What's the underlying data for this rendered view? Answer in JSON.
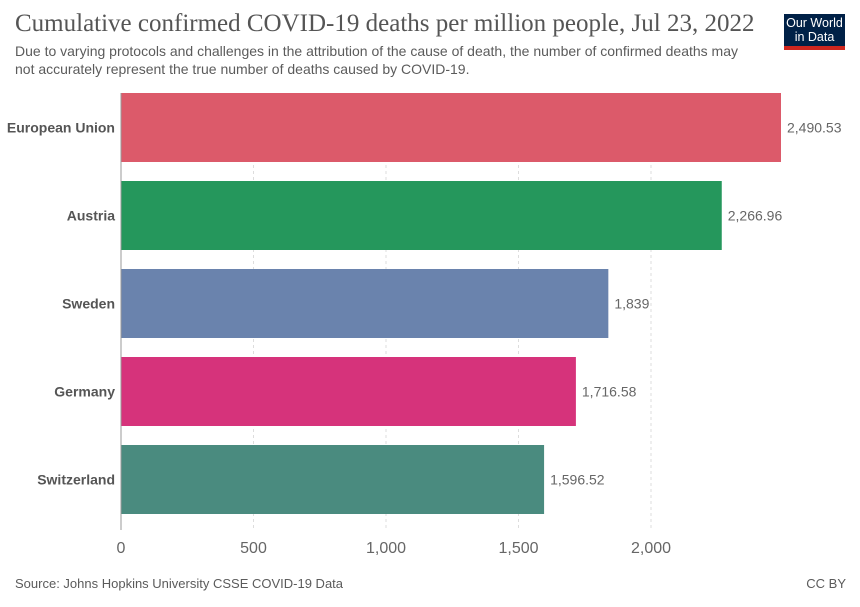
{
  "title": "Cumulative confirmed COVID-19 deaths per million people, Jul 23, 2022",
  "subtitle": "Due to varying protocols and challenges in the attribution of the cause of death, the number of confirmed deaths may not accurately represent the true number of deaths caused by COVID-19.",
  "logo": {
    "line1": "Our World",
    "line2": "in Data",
    "bg": "#002147",
    "accent": "#ce261e"
  },
  "source": "Source: Johns Hopkins University CSSE COVID-19 Data",
  "license": "CC BY",
  "chart_data": {
    "type": "bar",
    "orientation": "horizontal",
    "categories": [
      "European Union",
      "Austria",
      "Sweden",
      "Germany",
      "Switzerland"
    ],
    "values": [
      2490.53,
      2266.96,
      1839,
      1716.58,
      1596.52
    ],
    "value_labels": [
      "2,490.53",
      "2,266.96",
      "1,839",
      "1,716.58",
      "1,596.52"
    ],
    "colors": [
      "#dc5a6a",
      "#25975c",
      "#6a83ad",
      "#d6337b",
      "#4a8b7f"
    ],
    "xticks": [
      0,
      500,
      1000,
      1500,
      2000
    ],
    "xtick_labels": [
      "0",
      "500",
      "1,000",
      "1,500",
      "2,000"
    ],
    "xlim": [
      0,
      2490.53
    ],
    "grid": "vertical dashed"
  }
}
